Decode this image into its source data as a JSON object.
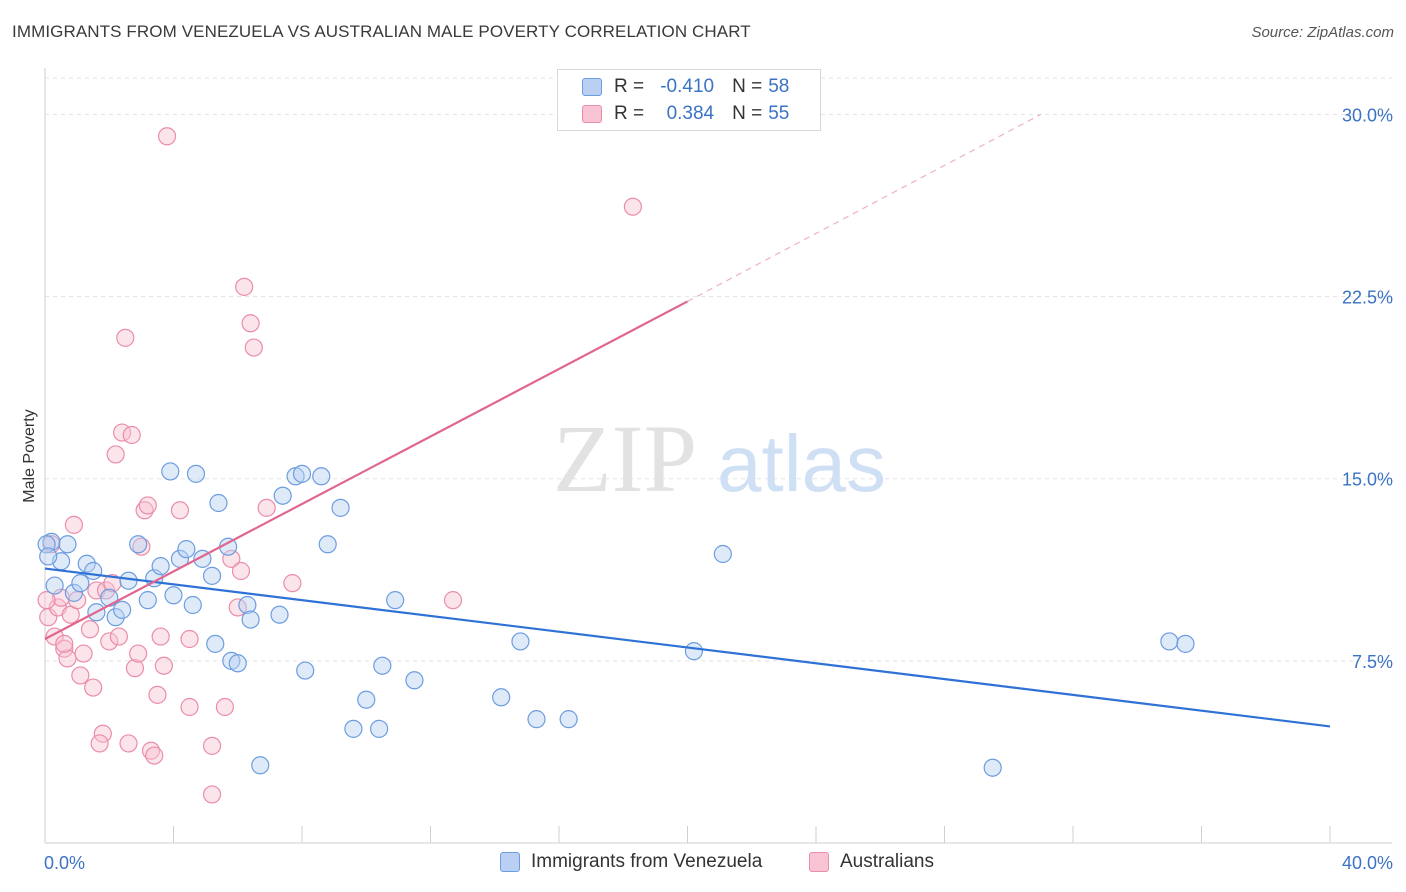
{
  "title": "IMMIGRANTS FROM VENEZUELA VS AUSTRALIAN MALE POVERTY CORRELATION CHART",
  "source": "Source: ZipAtlas.com",
  "watermark": {
    "zip": "ZIP",
    "atlas": "atlas"
  },
  "colors": {
    "blue_fill": "#b9d0f2",
    "blue_stroke": "#6c9de0",
    "blue_line": "#2f72d6",
    "pink_fill": "#f8c3d3",
    "pink_stroke": "#ea8daa",
    "pink_line": "#e0668f",
    "tick_text": "#3b73c4",
    "grid": "#e3e3e3"
  },
  "legend": {
    "rows": [
      {
        "r_label": "R =",
        "r_value": "-0.410",
        "n_label": "N =",
        "n_value": "58"
      },
      {
        "r_label": "R =",
        "r_value": "0.384",
        "n_label": "N =",
        "n_value": "55"
      }
    ]
  },
  "bottom_legend": [
    "Immigrants from Venezuela",
    "Australians"
  ],
  "chart_data": {
    "type": "scatter",
    "ylabel": "Male Poverty",
    "xlim": [
      0,
      40
    ],
    "ylim": [
      0,
      31.5
    ],
    "x_tick_labels": [
      {
        "value": 0,
        "label": "0.0%"
      },
      {
        "value": 40,
        "label": "40.0%"
      }
    ],
    "y_tick_labels": [
      {
        "value": 7.5,
        "label": "7.5%"
      },
      {
        "value": 15,
        "label": "15.0%"
      },
      {
        "value": 22.5,
        "label": "22.5%"
      },
      {
        "value": 30,
        "label": "30.0%"
      }
    ],
    "x_minor_ticks": [
      4,
      8,
      12,
      16,
      20,
      24,
      28,
      32,
      36,
      40
    ],
    "grid": true,
    "series": [
      {
        "name": "Immigrants from Venezuela",
        "color": "blue",
        "points": [
          [
            0.2,
            12.4
          ],
          [
            0.5,
            11.6
          ],
          [
            0.7,
            12.3
          ],
          [
            0.3,
            10.6
          ],
          [
            0.9,
            10.3
          ],
          [
            1.1,
            10.7
          ],
          [
            1.3,
            11.5
          ],
          [
            1.5,
            11.2
          ],
          [
            1.6,
            9.5
          ],
          [
            2.0,
            10.1
          ],
          [
            2.2,
            9.3
          ],
          [
            2.4,
            9.6
          ],
          [
            2.6,
            10.8
          ],
          [
            2.9,
            12.3
          ],
          [
            3.2,
            10.0
          ],
          [
            3.4,
            10.9
          ],
          [
            3.6,
            11.4
          ],
          [
            3.9,
            15.3
          ],
          [
            4.0,
            10.2
          ],
          [
            4.2,
            11.7
          ],
          [
            4.4,
            12.1
          ],
          [
            4.6,
            9.8
          ],
          [
            4.7,
            15.2
          ],
          [
            4.9,
            11.7
          ],
          [
            5.2,
            11.0
          ],
          [
            5.3,
            8.2
          ],
          [
            5.4,
            14.0
          ],
          [
            5.7,
            12.2
          ],
          [
            5.8,
            7.5
          ],
          [
            6.0,
            7.4
          ],
          [
            6.3,
            9.8
          ],
          [
            6.4,
            9.2
          ],
          [
            6.7,
            3.2
          ],
          [
            7.3,
            9.4
          ],
          [
            7.4,
            14.3
          ],
          [
            7.8,
            15.1
          ],
          [
            8.0,
            15.2
          ],
          [
            8.1,
            7.1
          ],
          [
            8.6,
            15.1
          ],
          [
            9.2,
            13.8
          ],
          [
            8.8,
            12.3
          ],
          [
            9.6,
            4.7
          ],
          [
            10.0,
            5.9
          ],
          [
            10.4,
            4.7
          ],
          [
            10.5,
            7.3
          ],
          [
            10.9,
            10.0
          ],
          [
            11.5,
            6.7
          ],
          [
            14.2,
            6.0
          ],
          [
            14.8,
            8.3
          ],
          [
            15.3,
            5.1
          ],
          [
            16.3,
            5.1
          ],
          [
            20.2,
            7.9
          ],
          [
            21.1,
            11.9
          ],
          [
            29.5,
            3.1
          ],
          [
            35.0,
            8.3
          ],
          [
            35.5,
            8.2
          ],
          [
            0.05,
            12.3
          ],
          [
            0.1,
            11.8
          ]
        ],
        "trend": {
          "x": [
            0,
            40
          ],
          "y": [
            11.3,
            4.8
          ]
        }
      },
      {
        "name": "Australians",
        "color": "pink",
        "points": [
          [
            0.1,
            9.3
          ],
          [
            0.3,
            8.5
          ],
          [
            0.4,
            9.7
          ],
          [
            0.6,
            8.0
          ],
          [
            0.7,
            7.6
          ],
          [
            0.8,
            9.4
          ],
          [
            0.9,
            13.1
          ],
          [
            1.0,
            10.0
          ],
          [
            1.2,
            7.8
          ],
          [
            1.4,
            8.8
          ],
          [
            1.5,
            6.4
          ],
          [
            1.6,
            10.4
          ],
          [
            1.8,
            4.5
          ],
          [
            1.7,
            4.1
          ],
          [
            1.9,
            10.4
          ],
          [
            2.0,
            8.3
          ],
          [
            2.1,
            10.7
          ],
          [
            2.2,
            16.0
          ],
          [
            2.3,
            8.5
          ],
          [
            2.4,
            16.9
          ],
          [
            2.5,
            20.8
          ],
          [
            2.6,
            4.1
          ],
          [
            2.7,
            16.8
          ],
          [
            2.8,
            7.2
          ],
          [
            2.9,
            7.8
          ],
          [
            3.0,
            12.2
          ],
          [
            3.1,
            13.7
          ],
          [
            3.2,
            13.9
          ],
          [
            3.3,
            3.8
          ],
          [
            3.4,
            3.6
          ],
          [
            3.5,
            6.1
          ],
          [
            3.6,
            8.5
          ],
          [
            3.7,
            7.3
          ],
          [
            3.8,
            29.1
          ],
          [
            4.2,
            13.7
          ],
          [
            4.5,
            8.4
          ],
          [
            4.5,
            5.6
          ],
          [
            5.2,
            4.0
          ],
          [
            5.2,
            2.0
          ],
          [
            5.6,
            5.6
          ],
          [
            5.8,
            11.7
          ],
          [
            6.0,
            9.7
          ],
          [
            6.1,
            11.2
          ],
          [
            6.2,
            22.9
          ],
          [
            6.4,
            21.4
          ],
          [
            6.5,
            20.4
          ],
          [
            6.9,
            13.8
          ],
          [
            7.7,
            10.7
          ],
          [
            12.7,
            10.0
          ],
          [
            18.3,
            26.2
          ],
          [
            0.2,
            12.3
          ],
          [
            0.5,
            10.1
          ],
          [
            0.6,
            8.2
          ],
          [
            1.1,
            6.9
          ],
          [
            0.05,
            10.0
          ]
        ],
        "trend": {
          "x": [
            0,
            20
          ],
          "y": [
            8.4,
            22.3
          ]
        },
        "trend_dashed": {
          "x": [
            20,
            31
          ],
          "y": [
            22.3,
            30.0
          ]
        }
      }
    ]
  }
}
